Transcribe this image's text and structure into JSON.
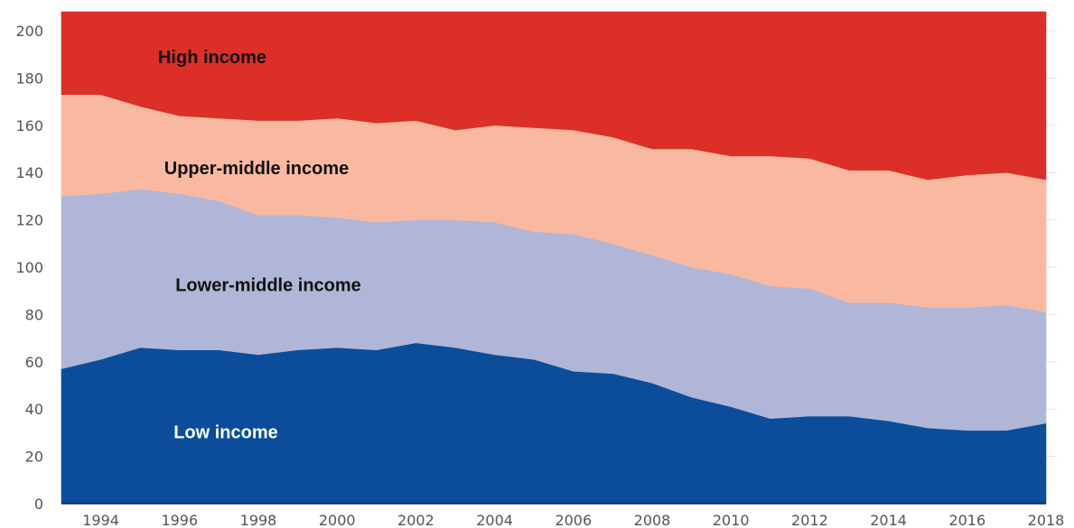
{
  "chart_data": {
    "type": "area",
    "stacked": true,
    "title": "",
    "xlabel": "",
    "ylabel": "",
    "x": [
      1993,
      1994,
      1995,
      1996,
      1997,
      1998,
      1999,
      2000,
      2001,
      2002,
      2003,
      2004,
      2005,
      2006,
      2007,
      2008,
      2009,
      2010,
      2011,
      2012,
      2013,
      2014,
      2015,
      2016,
      2017,
      2018
    ],
    "xlim": [
      1993,
      2018
    ],
    "ylim": [
      0,
      208
    ],
    "x_ticks": [
      "1994",
      "1996",
      "1998",
      "2000",
      "2002",
      "2004",
      "2006",
      "2008",
      "2010",
      "2012",
      "2014",
      "2016",
      "2018"
    ],
    "y_ticks": [
      "0",
      "20",
      "40",
      "60",
      "80",
      "100",
      "120",
      "140",
      "160",
      "180",
      "200"
    ],
    "grid": true,
    "series": [
      {
        "name": "Low income",
        "color": "#0b4d9b",
        "label_color": "#ffffff",
        "values": [
          57,
          61,
          66,
          65,
          65,
          63,
          65,
          66,
          65,
          68,
          66,
          63,
          61,
          56,
          55,
          51,
          45,
          41,
          36,
          37,
          37,
          35,
          32,
          31,
          31,
          34
        ]
      },
      {
        "name": "Lower-middle income",
        "color": "#b0b6d7",
        "label_color": "#111111",
        "values": [
          73,
          70,
          67,
          66,
          63,
          59,
          57,
          55,
          54,
          52,
          54,
          56,
          54,
          58,
          55,
          54,
          55,
          56,
          56,
          54,
          48,
          50,
          51,
          52,
          53,
          47
        ]
      },
      {
        "name": "Upper-middle income",
        "color": "#f8b9a0",
        "label_color": "#111111",
        "values": [
          43,
          42,
          35,
          33,
          35,
          40,
          40,
          42,
          42,
          42,
          38,
          41,
          44,
          44,
          45,
          45,
          50,
          50,
          55,
          55,
          56,
          56,
          54,
          56,
          56,
          56
        ]
      },
      {
        "name": "High income",
        "color": "#dc2f27",
        "label_color": "#111111",
        "values": [
          35,
          35,
          40,
          44,
          45,
          46,
          46,
          45,
          47,
          46,
          50,
          48,
          49,
          50,
          53,
          58,
          58,
          61,
          61,
          62,
          67,
          67,
          71,
          69,
          68,
          71
        ]
      }
    ]
  }
}
